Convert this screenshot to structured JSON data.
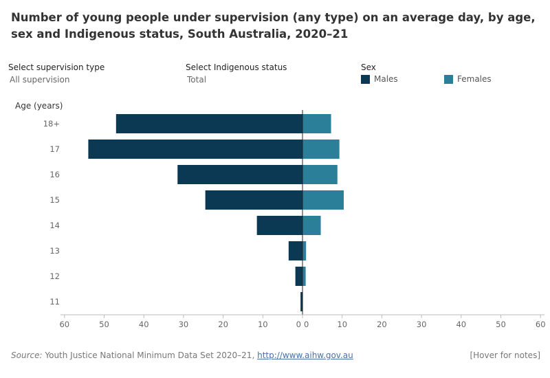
{
  "title": "Number of young people under supervision (any type) on an average day, by age, sex and Indigenous status, South Australia, 2020–21",
  "filters": {
    "supervision": {
      "label": "Select supervision type",
      "value": "All supervision"
    },
    "indigenous": {
      "label": "Select Indigenous status",
      "value": "Total"
    }
  },
  "legend": {
    "title": "Sex",
    "items": [
      {
        "name": "Males",
        "color": "#0b3954"
      },
      {
        "name": "Females",
        "color": "#2b7f99"
      }
    ]
  },
  "footer": {
    "source_prefix": "Source:",
    "source_text": "Youth Justice National Minimum Data Set 2020–21,",
    "source_link": "http://www.aihw.gov.au",
    "hover_note": "[Hover for notes]"
  },
  "chart_data": {
    "type": "bar",
    "orientation": "horizontal-butterfly",
    "ylabel": "Age (years)",
    "categories": [
      "18+",
      "17",
      "16",
      "15",
      "14",
      "13",
      "12",
      "11"
    ],
    "series": [
      {
        "name": "Males",
        "color": "#0b3954",
        "values": [
          47,
          54,
          31.5,
          24.5,
          11.5,
          3.5,
          1.8,
          0.5
        ]
      },
      {
        "name": "Females",
        "color": "#2b7f99",
        "values": [
          7.2,
          9.3,
          8.8,
          10.4,
          4.6,
          0.9,
          0.8,
          0.1
        ]
      }
    ],
    "x_ticks_left": [
      60,
      50,
      40,
      30,
      20,
      10,
      0
    ],
    "x_ticks_right": [
      0,
      10,
      20,
      30,
      40,
      50,
      60
    ],
    "xlim": [
      0,
      60
    ]
  }
}
